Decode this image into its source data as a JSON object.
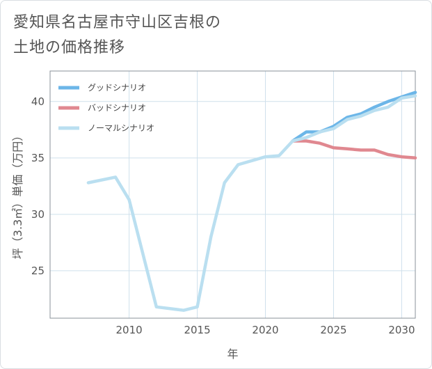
{
  "title_lines": [
    "愛知県名古屋市守山区吉根の",
    "土地の価格推移"
  ],
  "chart_data": {
    "type": "line",
    "title": "愛知県名古屋市守山区吉根の土地の価格推移",
    "xlabel": "年",
    "ylabel": "坪（3.3㎡）単価（万円）",
    "xlim": [
      2004.2,
      2031
    ],
    "ylim": [
      20.8,
      42.7
    ],
    "x_ticks": [
      2010,
      2015,
      2020,
      2025,
      2030
    ],
    "y_ticks": [
      25,
      30,
      35,
      40
    ],
    "grid": true,
    "legend_position": "top-left",
    "series": [
      {
        "name": "グッドシナリオ",
        "color": "#6cb6e8",
        "x": [
          2022,
          2023,
          2024,
          2025,
          2026,
          2027,
          2028,
          2029,
          2030,
          2031
        ],
        "y": [
          36.5,
          37.3,
          37.3,
          37.8,
          38.6,
          38.9,
          39.5,
          40.0,
          40.4,
          40.8
        ]
      },
      {
        "name": "バッドシナリオ",
        "color": "#e08890",
        "x": [
          2022,
          2023,
          2024,
          2025,
          2026,
          2027,
          2028,
          2029,
          2030,
          2031
        ],
        "y": [
          36.5,
          36.5,
          36.3,
          35.9,
          35.8,
          35.7,
          35.7,
          35.3,
          35.1,
          35.0
        ]
      },
      {
        "name": "ノーマルシナリオ",
        "color": "#badff0",
        "x": [
          2007,
          2009,
          2010,
          2012,
          2014,
          2015,
          2016,
          2017,
          2018,
          2020,
          2021,
          2022,
          2023,
          2024,
          2025,
          2026,
          2027,
          2028,
          2029,
          2030,
          2031
        ],
        "y": [
          32.8,
          33.3,
          31.3,
          21.8,
          21.5,
          21.8,
          28.0,
          32.8,
          34.4,
          35.1,
          35.2,
          36.5,
          36.8,
          37.3,
          37.6,
          38.4,
          38.7,
          39.2,
          39.5,
          40.3,
          40.5
        ]
      }
    ]
  }
}
